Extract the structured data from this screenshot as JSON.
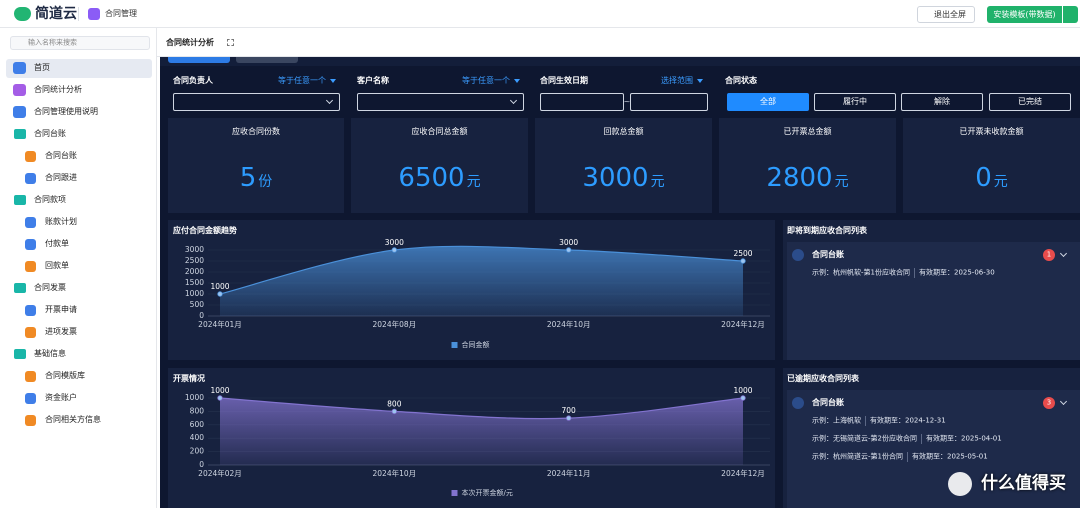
{
  "topbar": {
    "brand": "简道云",
    "app": "合同管理",
    "exit_fullscreen": "退出全屏",
    "install": "安装模板(带数据)"
  },
  "sidebar": {
    "search_placeholder": "输入名称来搜索",
    "items": [
      "首页",
      "合同统计分析",
      "合同管理使用说明"
    ],
    "groups": [
      {
        "label": "合同台账",
        "items": [
          "合同台账",
          "合同跟进"
        ]
      },
      {
        "label": "合同款项",
        "items": [
          "账款计划",
          "付款单",
          "回款单"
        ]
      },
      {
        "label": "合同发票",
        "items": [
          "开票申请",
          "进项发票"
        ]
      },
      {
        "label": "基础信息",
        "items": [
          "合同模版库",
          "资金账户",
          "合同相关方信息"
        ]
      }
    ]
  },
  "page_tab": "合同统计分析",
  "filters": [
    {
      "label": "合同负责人",
      "operator": "等于任意一个"
    },
    {
      "label": "客户名称",
      "operator": "等于任意一个"
    },
    {
      "label": "合同生效日期",
      "operator": "选择范围",
      "separator": "~"
    }
  ],
  "status_filter": {
    "label": "合同状态",
    "options": [
      "全部",
      "履行中",
      "解除",
      "已完结"
    ]
  },
  "kpis": [
    {
      "label": "应收合同份数",
      "value": 5,
      "unit": "份"
    },
    {
      "label": "应收合同总金额",
      "value": 6500,
      "unit": "元"
    },
    {
      "label": "回款总金额",
      "value": 3000,
      "unit": "元"
    },
    {
      "label": "已开票总金额",
      "value": 2800,
      "unit": "元"
    },
    {
      "label": "已开票未收款金额",
      "value": 0,
      "unit": "元"
    }
  ],
  "chart_data": [
    {
      "type": "line",
      "title": "应付合同金额趋势",
      "categories": [
        "2024年01月",
        "2024年08月",
        "2024年10月",
        "2024年12月"
      ],
      "series": [
        {
          "name": "合同金额",
          "color": "#4a90d9",
          "values": [
            1000,
            3000,
            3000,
            2500
          ]
        }
      ],
      "ylim": [
        0,
        3000
      ],
      "yticks": [
        0,
        500,
        1000,
        1500,
        2000,
        2500,
        3000
      ],
      "grid": true
    },
    {
      "type": "line",
      "title": "开票情况",
      "categories": [
        "2024年02月",
        "2024年10月",
        "2024年11月",
        "2024年12月"
      ],
      "series": [
        {
          "name": "本次开票金额/元",
          "color": "#8273cf",
          "values": [
            1000,
            800,
            700,
            1000
          ]
        }
      ],
      "ylim": [
        0,
        1000
      ],
      "yticks": [
        0,
        200,
        400,
        600,
        800,
        1000
      ],
      "grid": true
    }
  ],
  "lists": [
    {
      "title": "即将到期应收合同列表",
      "group": "合同台账",
      "count": 1,
      "items": [
        {
          "name": "示例：杭州帆软-第1份应收合同",
          "expiry": "有效期至：2025-06-30"
        }
      ]
    },
    {
      "title": "已逾期应收合同列表",
      "group": "合同台账",
      "count": 3,
      "items": [
        {
          "name": "示例：上海帆软",
          "expiry": "有效期至：2024-12-31"
        },
        {
          "name": "示例：无锡简道云-第2份应收合同",
          "expiry": "有效期至：2025-04-01"
        },
        {
          "name": "示例：杭州简道云-第1份合同",
          "expiry": "有效期至：2025-05-01"
        }
      ]
    }
  ],
  "watermark": "什么值得买"
}
